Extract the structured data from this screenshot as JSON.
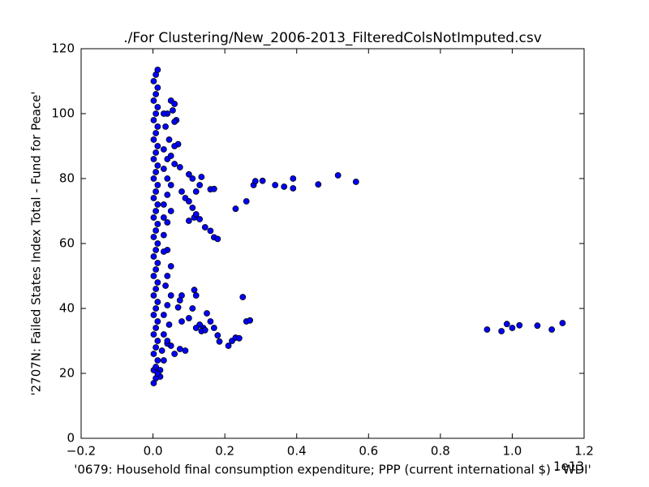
{
  "chart_data": {
    "type": "scatter",
    "title": "./For Clustering/New_2006-2013_FilteredColsNotImputed.csv",
    "xlabel": "'0679: Household final consumption expenditure; PPP  (current international $) - WDI'",
    "ylabel": "'2707N: Failed States Index Total - Fund for Peace'",
    "x_offset_label": "1e13",
    "color": "#0000ff",
    "edgecolor": "#000000",
    "xlim": [
      -0.2,
      1.2
    ],
    "ylim": [
      0,
      120
    ],
    "xticks": [
      {
        "value": -0.2,
        "label": "−0.2"
      },
      {
        "value": 0,
        "label": "0.0"
      },
      0.2,
      0.4,
      0.6,
      0.8,
      {
        "value": 1,
        "label": "1.0"
      },
      1.2
    ],
    "yticks": [
      0,
      20,
      40,
      60,
      80,
      100,
      120
    ],
    "grid": false,
    "x": [
      0.93,
      0.97,
      0.985,
      1.0,
      1.02,
      1.07,
      1.11,
      1.14,
      0.23,
      0.26,
      0.28,
      0.285,
      0.305,
      0.34,
      0.365,
      0.39,
      0.39,
      0.46,
      0.515,
      0.565,
      0.17,
      0.18,
      0.16,
      0.145,
      0.13,
      0.115,
      0.1,
      0.12,
      0.11,
      0.1,
      0.09,
      0.08,
      0.12,
      0.13,
      0.135,
      0.11,
      0.1,
      0.16,
      0.17,
      0.075,
      0.06,
      0.07,
      0.06,
      0.25,
      0.26,
      0.27,
      0.22,
      0.23,
      0.24,
      0.21,
      0.18,
      0.185,
      0.17,
      0.16,
      0.15,
      0.14,
      0.13,
      0.12,
      0.115,
      0.12,
      0.11,
      0.08,
      0.075,
      0.07,
      0.08,
      0.09,
      0.075,
      0.06,
      0.05,
      0.04,
      0.1,
      0.135,
      0.145,
      0.05,
      0.06,
      0.055,
      0.065,
      0.06,
      0.04,
      0.03,
      0.035,
      0.045,
      0.03,
      0.04,
      0.05,
      0.03,
      0.04,
      0.05,
      0.04,
      0.03,
      0.05,
      0.03,
      0.04,
      0.03,
      0.04,
      0.03,
      0.05,
      0.04,
      0.035,
      0.05,
      0.04,
      0.03,
      0.045,
      0.03,
      0.04,
      0.025,
      0.03,
      0.02,
      0.02,
      0.002,
      0.008,
      0.013,
      0.002,
      0.008,
      0.013,
      0.002,
      0.008,
      0.013,
      0.002,
      0.008,
      0.013,
      0.002,
      0.008,
      0.013,
      0.002,
      0.008,
      0.013,
      0.002,
      0.008,
      0.013,
      0.002,
      0.008,
      0.013,
      0.002,
      0.008,
      0.013,
      0.002,
      0.008,
      0.013,
      0.002,
      0.008,
      0.013,
      0.002,
      0.008,
      0.013,
      0.002,
      0.008,
      0.013,
      0.002,
      0.008,
      0.013,
      0.002,
      0.008,
      0.013,
      0.002,
      0.008,
      0.013,
      0.002,
      0.008,
      0.013
    ],
    "values": [
      33.5,
      33,
      35.2,
      34,
      34.8,
      34.7,
      33.5,
      35.5,
      70.7,
      73,
      78,
      79.2,
      79.3,
      78,
      77.5,
      77,
      80,
      78.2,
      81,
      79,
      61.9,
      61.4,
      63.9,
      65,
      67.5,
      68,
      67,
      69,
      71,
      73,
      74,
      76,
      76,
      78,
      80.5,
      80,
      81.3,
      76.7,
      76.8,
      83.5,
      84.5,
      90.6,
      90,
      43.5,
      36,
      36.3,
      30,
      31,
      30.8,
      28.5,
      31.7,
      29.8,
      34,
      36,
      38.5,
      34,
      35,
      34,
      45.7,
      44,
      40,
      44,
      42.5,
      40.3,
      36,
      27,
      27.5,
      26,
      28.5,
      29.2,
      37,
      33,
      33.3,
      104,
      103,
      101,
      98,
      97.5,
      100,
      100,
      96,
      92,
      89,
      86,
      87,
      83,
      80,
      78,
      75,
      72,
      70,
      68,
      66.5,
      62.6,
      58,
      57.5,
      53,
      50,
      47,
      44,
      41,
      38,
      35,
      32,
      30,
      27,
      24,
      21,
      19,
      17,
      18.5,
      20,
      21,
      22,
      24,
      26,
      28,
      30,
      32,
      34,
      36,
      38,
      40,
      42,
      44,
      46,
      48,
      50,
      52,
      54,
      56,
      58,
      60,
      62,
      64,
      66,
      68,
      70,
      72,
      74,
      76,
      78,
      80,
      82,
      84,
      86,
      88,
      90,
      92,
      94,
      96,
      98,
      100,
      102,
      104,
      106,
      108,
      110,
      112,
      113.5
    ]
  }
}
